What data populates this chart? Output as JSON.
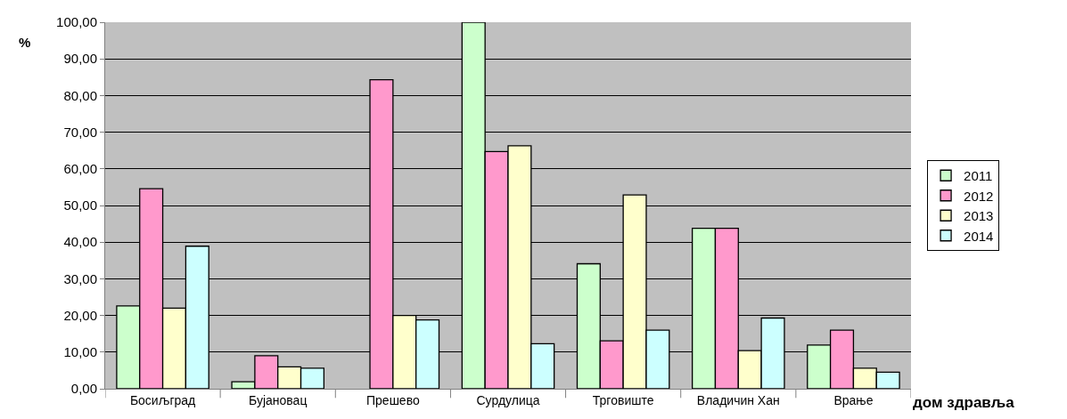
{
  "chart_data": {
    "type": "bar",
    "ylabel": "%",
    "xlabel": "дом здравља",
    "categories": [
      "Босиљград",
      "Бујановац",
      "Прешево",
      "Сурдулица",
      "Трговиште",
      "Владичин Хан",
      "Врање"
    ],
    "series": [
      {
        "name": "2011",
        "color": "#ccffcc",
        "values": [
          22.6,
          1.9,
          null,
          100,
          34.1,
          43.8,
          11.9
        ]
      },
      {
        "name": "2012",
        "color": "#ff99cc",
        "values": [
          54.6,
          9.0,
          84.3,
          64.7,
          13.1,
          43.8,
          16.0
        ]
      },
      {
        "name": "2013",
        "color": "#ffffcc",
        "values": [
          22.0,
          6.0,
          20.0,
          66.3,
          52.9,
          10.4,
          5.6
        ]
      },
      {
        "name": "2014",
        "color": "#ccffff",
        "values": [
          38.9,
          5.6,
          18.8,
          12.3,
          16.0,
          19.3,
          4.5
        ]
      }
    ],
    "ylim": [
      0,
      100
    ],
    "yticks": [
      {
        "value": 0,
        "label": "0,00"
      },
      {
        "value": 10,
        "label": "10,00"
      },
      {
        "value": 20,
        "label": "20,00"
      },
      {
        "value": 30,
        "label": "30,00"
      },
      {
        "value": 40,
        "label": "40,00"
      },
      {
        "value": 50,
        "label": "50,00"
      },
      {
        "value": 60,
        "label": "60,00"
      },
      {
        "value": 70,
        "label": "70,00"
      },
      {
        "value": 80,
        "label": "80,00"
      },
      {
        "value": 90,
        "label": "90,00"
      },
      {
        "value": 100,
        "label": "100,00"
      }
    ],
    "grid": "y",
    "legend": "right"
  }
}
